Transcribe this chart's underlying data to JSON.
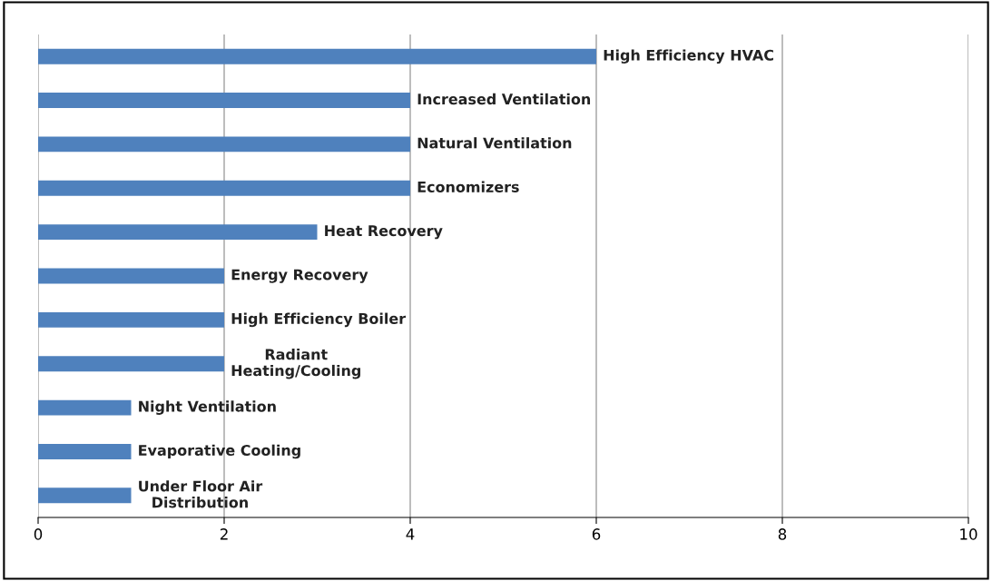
{
  "chart_data": {
    "type": "bar",
    "orientation": "horizontal",
    "categories": [
      "High Efficiency HVAC",
      "Increased Ventilation",
      "Natural Ventilation",
      "Economizers",
      "Heat Recovery",
      "Energy Recovery",
      "High Efficiency Boiler",
      "Radiant\nHeating/Cooling",
      "Night Ventilation",
      "Evaporative Cooling",
      "Under Floor Air\nDistribution"
    ],
    "values": [
      6,
      4,
      4,
      4,
      3,
      2,
      2,
      2,
      1,
      1,
      1
    ],
    "color": "#4f81bd",
    "xlim": [
      0,
      10
    ],
    "xticks": [
      0,
      2,
      4,
      6,
      8,
      10
    ],
    "grid": "x",
    "legend": false
  }
}
